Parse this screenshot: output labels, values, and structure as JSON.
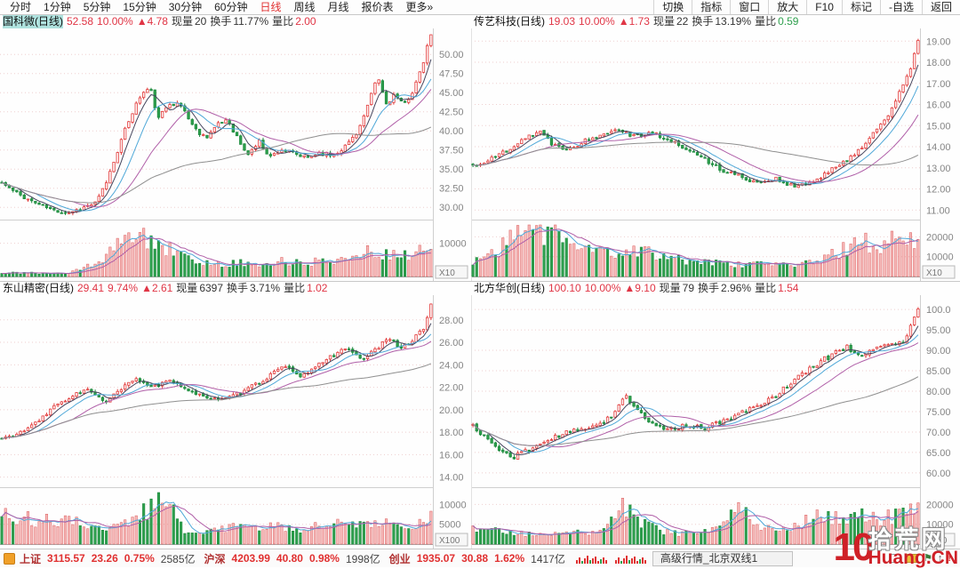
{
  "menu": {
    "left": [
      {
        "label": "分时",
        "active": false
      },
      {
        "label": "1分钟",
        "active": false
      },
      {
        "label": "5分钟",
        "active": false
      },
      {
        "label": "15分钟",
        "active": false
      },
      {
        "label": "30分钟",
        "active": false
      },
      {
        "label": "60分钟",
        "active": false
      },
      {
        "label": "日线",
        "active": true
      },
      {
        "label": "周线",
        "active": false
      },
      {
        "label": "月线",
        "active": false
      },
      {
        "label": "报价表",
        "active": false
      },
      {
        "label": "更多»",
        "active": false
      }
    ],
    "right": [
      "切换",
      "指标",
      "窗口",
      "放大",
      "F10",
      "标记",
      "-自选",
      "返回"
    ]
  },
  "labels": {
    "vol": "现量",
    "turnover": "换手",
    "ratio": "量比"
  },
  "colors": {
    "up": "#e23b3b",
    "up_fill": "#fff6f6",
    "down": "#2fa04e",
    "down_dark": "#1d8a3e",
    "vol_up_fill": "#f6bdbd",
    "vol_up_stroke": "#e06a6a",
    "ma5": "#44445c",
    "ma10": "#4fa8d8",
    "ma20": "#b05fa8",
    "ma60": "#8f8f8f",
    "vma5": "#4fa8d8",
    "vma10": "#b05fa8",
    "grid": "#eecfcf",
    "axis_text": "#858585",
    "border": "#cfcfcf",
    "baseline": "#a8a8a8"
  },
  "charts": [
    {
      "name": "国科微(日线)",
      "selected": true,
      "price": "52.58",
      "pct": "10.00%",
      "change": "▲4.78",
      "vol_now": "20",
      "turnover": "11.77%",
      "ratio": "2.00",
      "ratio_color": "#e03545",
      "mult": "X10",
      "seed": 11,
      "n": 116,
      "price_min": 28.4,
      "price_max": 53.4,
      "ticks": [
        [
          "50.00",
          50
        ],
        [
          "47.50",
          47.5
        ],
        [
          "45.00",
          45
        ],
        [
          "42.50",
          42.5
        ],
        [
          "40.00",
          40
        ],
        [
          "37.50",
          37.5
        ],
        [
          "35.00",
          35
        ],
        [
          "32.50",
          32.5
        ],
        [
          "30.00",
          30
        ]
      ],
      "vticks": [
        [
          "10000",
          10000
        ]
      ],
      "vol_max": 15500,
      "price_keys": [
        [
          0,
          33.2
        ],
        [
          0.03,
          32.0
        ],
        [
          0.07,
          30.8
        ],
        [
          0.12,
          29.6
        ],
        [
          0.155,
          29.3
        ],
        [
          0.19,
          30.0
        ],
        [
          0.22,
          30.6
        ],
        [
          0.245,
          33.5
        ],
        [
          0.27,
          37.5
        ],
        [
          0.3,
          42.0
        ],
        [
          0.325,
          44.8
        ],
        [
          0.345,
          45.6
        ],
        [
          0.365,
          41.5
        ],
        [
          0.39,
          43.8
        ],
        [
          0.42,
          43.2
        ],
        [
          0.45,
          40.2
        ],
        [
          0.475,
          39.2
        ],
        [
          0.5,
          40.6
        ],
        [
          0.525,
          41.6
        ],
        [
          0.55,
          39.0
        ],
        [
          0.57,
          36.8
        ],
        [
          0.6,
          38.6
        ],
        [
          0.625,
          36.6
        ],
        [
          0.65,
          37.6
        ],
        [
          0.68,
          37.0
        ],
        [
          0.71,
          36.4
        ],
        [
          0.74,
          37.2
        ],
        [
          0.77,
          36.8
        ],
        [
          0.8,
          38.0
        ],
        [
          0.83,
          40.0
        ],
        [
          0.855,
          43.5
        ],
        [
          0.875,
          47.2
        ],
        [
          0.895,
          43.5
        ],
        [
          0.915,
          44.8
        ],
        [
          0.935,
          43.2
        ],
        [
          0.955,
          45.0
        ],
        [
          0.975,
          47.5
        ],
        [
          1,
          52.58
        ]
      ],
      "vol_keys": [
        [
          0,
          0.07
        ],
        [
          0.15,
          0.06
        ],
        [
          0.22,
          0.25
        ],
        [
          0.27,
          0.6
        ],
        [
          0.3,
          0.95
        ],
        [
          0.33,
          0.75
        ],
        [
          0.36,
          0.55
        ],
        [
          0.4,
          0.5
        ],
        [
          0.44,
          0.3
        ],
        [
          0.5,
          0.22
        ],
        [
          0.55,
          0.28
        ],
        [
          0.6,
          0.2
        ],
        [
          0.65,
          0.3
        ],
        [
          0.7,
          0.25
        ],
        [
          0.75,
          0.3
        ],
        [
          0.8,
          0.35
        ],
        [
          0.85,
          0.5
        ],
        [
          0.9,
          0.45
        ],
        [
          0.95,
          0.4
        ],
        [
          1,
          0.55
        ]
      ]
    },
    {
      "name": "传艺科技(日线)",
      "selected": false,
      "price": "19.03",
      "pct": "10.00%",
      "change": "▲1.73",
      "vol_now": "22",
      "turnover": "13.19%",
      "ratio": "0.59",
      "ratio_color": "#2fa04e",
      "mult": "X10",
      "seed": 22,
      "n": 120,
      "price_min": 10.55,
      "price_max": 19.6,
      "ticks": [
        [
          "19.00",
          19
        ],
        [
          "18.00",
          18
        ],
        [
          "17.00",
          17
        ],
        [
          "16.00",
          16
        ],
        [
          "15.00",
          15
        ],
        [
          "14.00",
          14
        ],
        [
          "13.00",
          13
        ],
        [
          "12.00",
          12
        ],
        [
          "11.00",
          11
        ]
      ],
      "vticks": [
        [
          "20000",
          20000
        ],
        [
          "10000",
          10000
        ]
      ],
      "vol_max": 26000,
      "price_keys": [
        [
          0,
          13.1
        ],
        [
          0.04,
          13.4
        ],
        [
          0.08,
          13.9
        ],
        [
          0.12,
          14.5
        ],
        [
          0.15,
          14.7
        ],
        [
          0.18,
          14.1
        ],
        [
          0.22,
          13.9
        ],
        [
          0.26,
          14.4
        ],
        [
          0.3,
          14.7
        ],
        [
          0.33,
          14.9
        ],
        [
          0.36,
          14.5
        ],
        [
          0.4,
          14.7
        ],
        [
          0.44,
          14.3
        ],
        [
          0.48,
          13.9
        ],
        [
          0.52,
          13.4
        ],
        [
          0.56,
          12.9
        ],
        [
          0.6,
          12.6
        ],
        [
          0.64,
          12.3
        ],
        [
          0.68,
          12.5
        ],
        [
          0.72,
          12.1
        ],
        [
          0.76,
          12.3
        ],
        [
          0.8,
          12.8
        ],
        [
          0.84,
          13.4
        ],
        [
          0.88,
          14.1
        ],
        [
          0.91,
          14.9
        ],
        [
          0.94,
          15.8
        ],
        [
          0.965,
          16.9
        ],
        [
          0.98,
          17.4
        ],
        [
          1,
          19.03
        ]
      ],
      "vol_keys": [
        [
          0,
          0.3
        ],
        [
          0.06,
          0.5
        ],
        [
          0.1,
          0.95
        ],
        [
          0.14,
          0.8
        ],
        [
          0.18,
          0.85
        ],
        [
          0.22,
          0.6
        ],
        [
          0.28,
          0.5
        ],
        [
          0.33,
          0.45
        ],
        [
          0.38,
          0.5
        ],
        [
          0.44,
          0.35
        ],
        [
          0.5,
          0.3
        ],
        [
          0.56,
          0.25
        ],
        [
          0.62,
          0.22
        ],
        [
          0.68,
          0.25
        ],
        [
          0.74,
          0.22
        ],
        [
          0.79,
          0.35
        ],
        [
          0.83,
          0.5
        ],
        [
          0.87,
          0.75
        ],
        [
          0.9,
          0.55
        ],
        [
          0.93,
          0.7
        ],
        [
          0.96,
          0.8
        ],
        [
          1,
          0.7
        ]
      ]
    },
    {
      "name": "东山精密(日线)",
      "selected": false,
      "price": "29.41",
      "pct": "9.74%",
      "change": "▲2.61",
      "vol_now": "6397",
      "turnover": "3.71%",
      "ratio": "1.02",
      "ratio_color": "#e03545",
      "mult": "X100",
      "seed": 33,
      "n": 116,
      "price_min": 13.1,
      "price_max": 30.2,
      "ticks": [
        [
          "28.00",
          28
        ],
        [
          "26.00",
          26
        ],
        [
          "24.00",
          24
        ],
        [
          "22.00",
          22
        ],
        [
          "20.00",
          20
        ],
        [
          "18.00",
          18
        ],
        [
          "16.00",
          16
        ],
        [
          "14.00",
          14
        ]
      ],
      "vticks": [
        [
          "10000",
          10000
        ],
        [
          "5000",
          5000
        ]
      ],
      "vol_max": 13000,
      "price_keys": [
        [
          0,
          17.4
        ],
        [
          0.04,
          17.9
        ],
        [
          0.08,
          18.8
        ],
        [
          0.12,
          20.2
        ],
        [
          0.16,
          21.2
        ],
        [
          0.2,
          21.8
        ],
        [
          0.24,
          20.6
        ],
        [
          0.28,
          21.9
        ],
        [
          0.315,
          22.8
        ],
        [
          0.35,
          22.0
        ],
        [
          0.39,
          22.5
        ],
        [
          0.43,
          21.9
        ],
        [
          0.47,
          21.2
        ],
        [
          0.51,
          20.8
        ],
        [
          0.55,
          21.4
        ],
        [
          0.59,
          22.2
        ],
        [
          0.63,
          23.2
        ],
        [
          0.66,
          23.9
        ],
        [
          0.69,
          22.9
        ],
        [
          0.73,
          23.8
        ],
        [
          0.77,
          24.8
        ],
        [
          0.8,
          25.6
        ],
        [
          0.835,
          24.4
        ],
        [
          0.87,
          25.3
        ],
        [
          0.9,
          26.3
        ],
        [
          0.93,
          25.6
        ],
        [
          0.96,
          26.3
        ],
        [
          0.98,
          27.0
        ],
        [
          1,
          29.41
        ]
      ],
      "vol_keys": [
        [
          0,
          0.55
        ],
        [
          0.05,
          0.5
        ],
        [
          0.1,
          0.45
        ],
        [
          0.15,
          0.5
        ],
        [
          0.2,
          0.35
        ],
        [
          0.25,
          0.3
        ],
        [
          0.3,
          0.45
        ],
        [
          0.38,
          0.9
        ],
        [
          0.42,
          0.3
        ],
        [
          0.45,
          0.25
        ],
        [
          0.5,
          0.3
        ],
        [
          0.55,
          0.35
        ],
        [
          0.6,
          0.3
        ],
        [
          0.65,
          0.35
        ],
        [
          0.7,
          0.3
        ],
        [
          0.75,
          0.35
        ],
        [
          0.8,
          0.4
        ],
        [
          0.85,
          0.35
        ],
        [
          0.9,
          0.4
        ],
        [
          0.95,
          0.35
        ],
        [
          1,
          0.5
        ]
      ]
    },
    {
      "name": "北方华创(日线)",
      "selected": false,
      "price": "100.10",
      "pct": "10.00%",
      "change": "▲9.10",
      "vol_now": "79",
      "turnover": "2.96%",
      "ratio": "1.54",
      "ratio_color": "#e03545",
      "mult": "X100",
      "seed": 44,
      "n": 120,
      "price_min": 56.5,
      "price_max": 103.5,
      "ticks": [
        [
          "100.0",
          100
        ],
        [
          "95.00",
          95
        ],
        [
          "90.00",
          90
        ],
        [
          "85.00",
          85
        ],
        [
          "80.00",
          80
        ],
        [
          "75.00",
          75
        ],
        [
          "70.00",
          70
        ],
        [
          "65.00",
          65
        ],
        [
          "60.00",
          60
        ]
      ],
      "vticks": [
        [
          "20000",
          20000
        ],
        [
          "10000",
          10000
        ]
      ],
      "vol_max": 26000,
      "price_keys": [
        [
          0,
          71.5
        ],
        [
          0.03,
          68.5
        ],
        [
          0.06,
          65.5
        ],
        [
          0.09,
          63.8
        ],
        [
          0.12,
          65.5
        ],
        [
          0.16,
          67.5
        ],
        [
          0.2,
          69.5
        ],
        [
          0.24,
          70.5
        ],
        [
          0.28,
          72.0
        ],
        [
          0.315,
          74.0
        ],
        [
          0.34,
          79.5
        ],
        [
          0.365,
          75.5
        ],
        [
          0.4,
          72.0
        ],
        [
          0.44,
          70.5
        ],
        [
          0.48,
          71.8
        ],
        [
          0.52,
          71.0
        ],
        [
          0.56,
          72.5
        ],
        [
          0.6,
          74.5
        ],
        [
          0.64,
          76.5
        ],
        [
          0.68,
          79.0
        ],
        [
          0.72,
          82.5
        ],
        [
          0.76,
          85.8
        ],
        [
          0.8,
          88.5
        ],
        [
          0.84,
          91.0
        ],
        [
          0.865,
          88.5
        ],
        [
          0.89,
          90.0
        ],
        [
          0.92,
          91.8
        ],
        [
          0.95,
          91.0
        ],
        [
          0.97,
          92.5
        ],
        [
          1,
          100.1
        ]
      ],
      "vol_keys": [
        [
          0,
          0.3
        ],
        [
          0.05,
          0.28
        ],
        [
          0.1,
          0.22
        ],
        [
          0.15,
          0.18
        ],
        [
          0.2,
          0.2
        ],
        [
          0.25,
          0.22
        ],
        [
          0.3,
          0.3
        ],
        [
          0.34,
          0.8
        ],
        [
          0.37,
          0.45
        ],
        [
          0.42,
          0.25
        ],
        [
          0.47,
          0.2
        ],
        [
          0.52,
          0.25
        ],
        [
          0.57,
          0.35
        ],
        [
          0.6,
          0.95
        ],
        [
          0.63,
          0.4
        ],
        [
          0.68,
          0.3
        ],
        [
          0.72,
          0.35
        ],
        [
          0.76,
          0.5
        ],
        [
          0.8,
          0.55
        ],
        [
          0.84,
          0.45
        ],
        [
          0.88,
          0.55
        ],
        [
          0.92,
          0.5
        ],
        [
          0.96,
          0.55
        ],
        [
          1,
          0.65
        ]
      ]
    }
  ],
  "status": {
    "indices": [
      {
        "name": "上证",
        "value": "3115.57",
        "change": "23.26",
        "pct": "0.75%",
        "amount": "2585亿"
      },
      {
        "name": "沪深",
        "value": "4203.99",
        "change": "40.80",
        "pct": "0.98%",
        "amount": "1998亿"
      },
      {
        "name": "创业",
        "value": "1935.07",
        "change": "30.88",
        "pct": "1.62%",
        "amount": "1417亿"
      }
    ],
    "minibars": [
      [
        4,
        "r"
      ],
      [
        7,
        "r"
      ],
      [
        3,
        "g"
      ],
      [
        6,
        "r"
      ],
      [
        9,
        "r"
      ],
      [
        4,
        "g"
      ],
      [
        6,
        "r"
      ],
      [
        8,
        "r"
      ],
      [
        3,
        "r"
      ],
      [
        5,
        "g"
      ],
      [
        7,
        "r"
      ],
      [
        4,
        "r"
      ]
    ],
    "server": "高级行情_北京双线1",
    "icon_colors": {
      "red": "#e03030",
      "green": "#2fa04e"
    }
  },
  "watermark": {
    "big": "10",
    "site": "拾荒网",
    "domain": "Huang.CN"
  }
}
